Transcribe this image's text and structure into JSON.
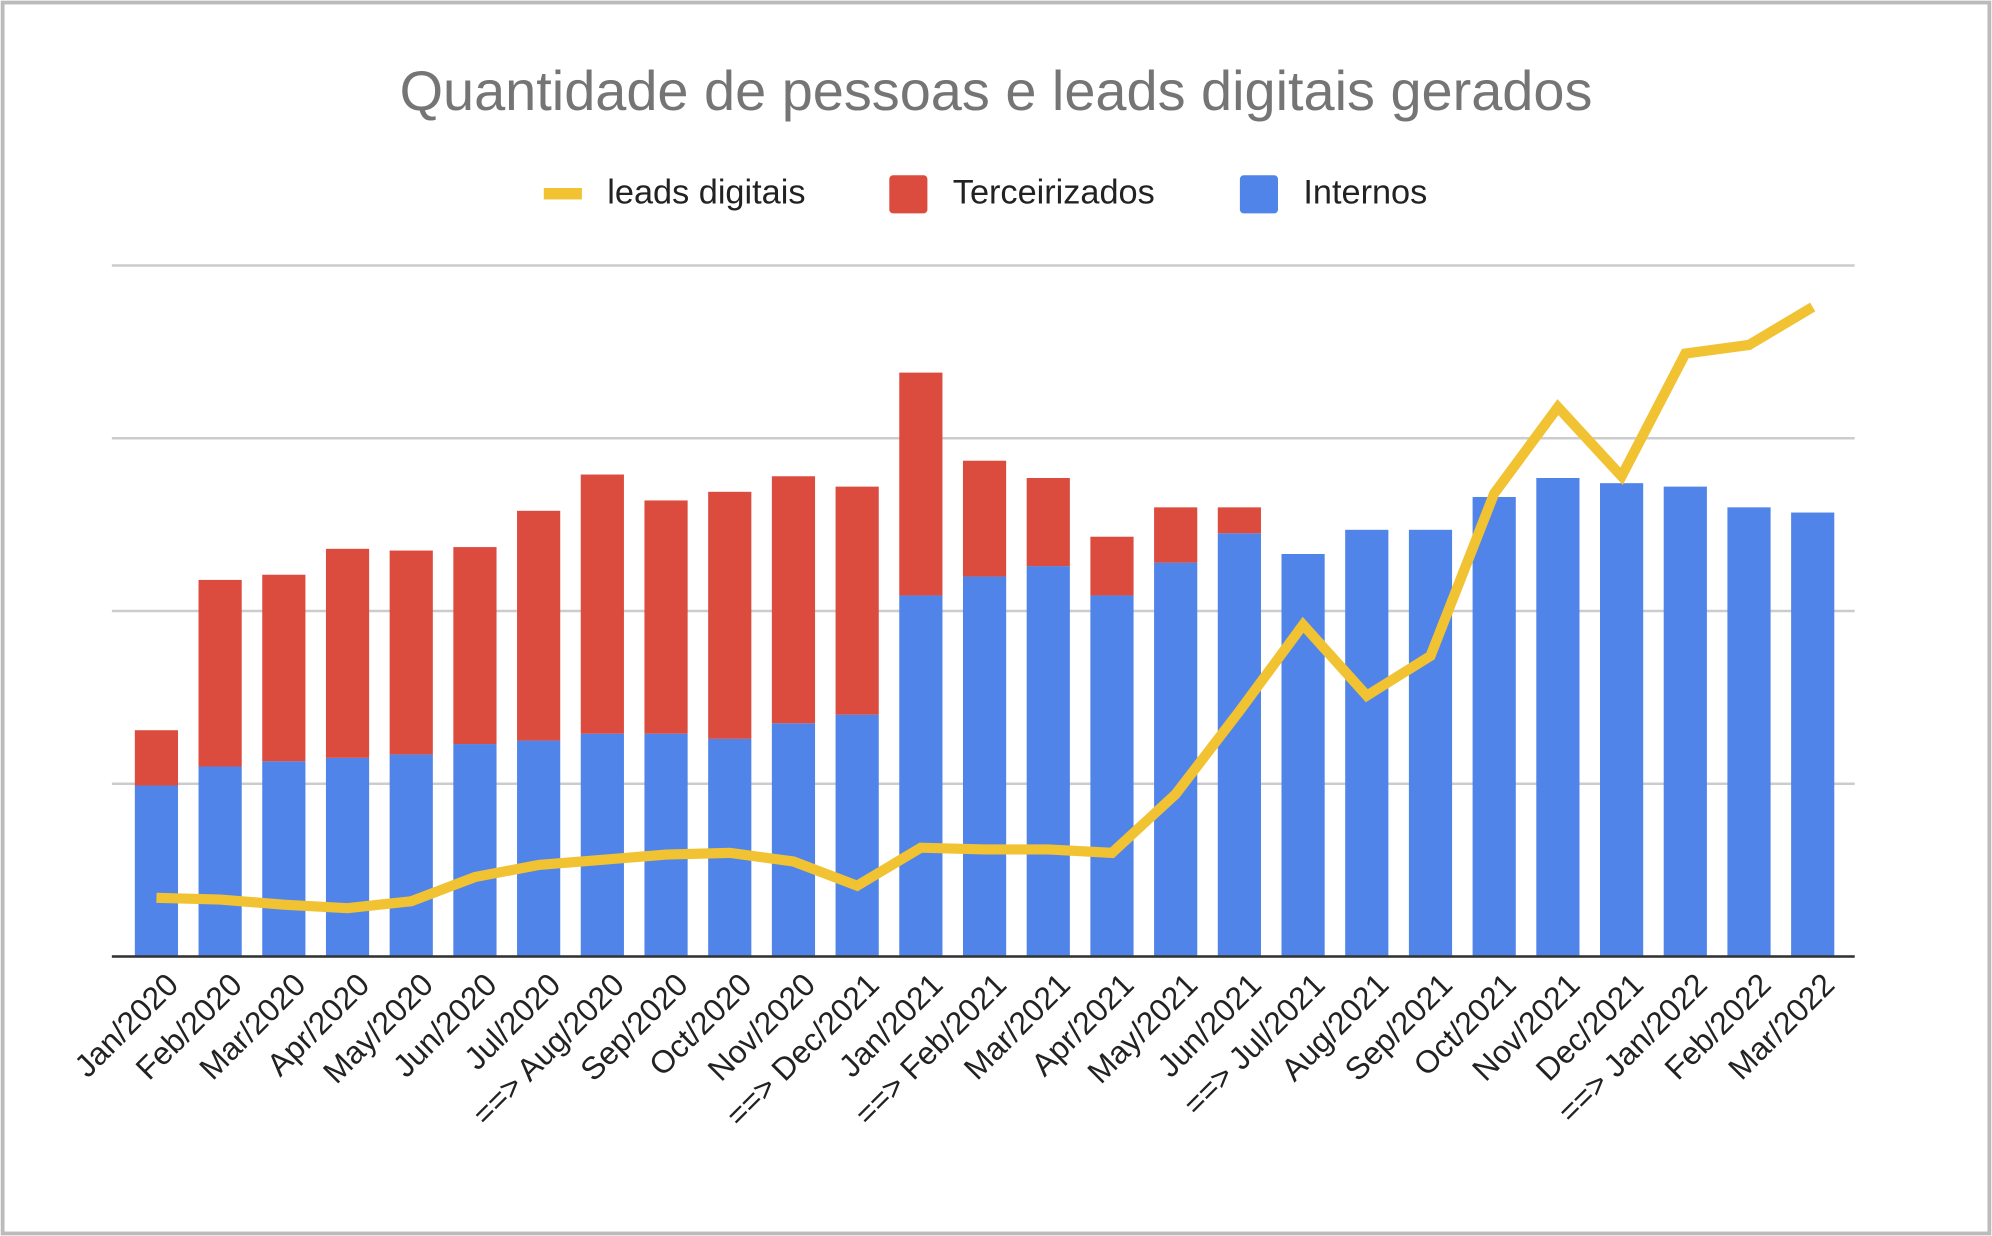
{
  "chart_data": {
    "type": "bar",
    "title": "Quantidade de pessoas e leads digitais gerados",
    "categories": [
      "Jan/2020",
      "Feb/2020",
      "Mar/2020",
      "Apr/2020",
      "May/2020",
      "Jun/2020",
      "Jul/2020",
      "==> Aug/2020",
      "Sep/2020",
      "Oct/2020",
      "Nov/2020",
      "==> Dec/2021",
      "Jan/2021",
      "==> Feb/2021",
      "Mar/2021",
      "Apr/2021",
      "May/2021",
      "Jun/2021",
      "==> Jul/2021",
      "Aug/2021",
      "Sep/2021",
      "Oct/2021",
      "Nov/2021",
      "Dec/2021",
      "==> Jan/2022",
      "Feb/2022",
      "Mar/2022"
    ],
    "stacked": true,
    "series": [
      {
        "name": "leads digitais",
        "type": "line",
        "color": "#f1c232",
        "values": [
          0.34,
          0.33,
          0.3,
          0.28,
          0.32,
          0.46,
          0.53,
          0.56,
          0.59,
          0.6,
          0.55,
          0.41,
          0.63,
          0.62,
          0.62,
          0.6,
          0.94,
          1.42,
          1.92,
          1.51,
          1.74,
          2.68,
          3.18,
          2.78,
          3.49,
          3.54,
          3.76
        ]
      },
      {
        "name": "Terceirizados",
        "type": "bar",
        "color": "#db4c3f",
        "values": [
          0.32,
          1.08,
          1.08,
          1.21,
          1.18,
          1.14,
          1.33,
          1.5,
          1.35,
          1.43,
          1.43,
          1.32,
          1.29,
          0.67,
          0.51,
          0.34,
          0.32,
          0.15,
          0,
          0,
          0,
          0,
          0,
          0,
          0,
          0,
          0
        ]
      },
      {
        "name": "Internos",
        "type": "bar",
        "color": "#5084e8",
        "values": [
          0.99,
          1.1,
          1.13,
          1.15,
          1.17,
          1.23,
          1.25,
          1.29,
          1.29,
          1.26,
          1.35,
          1.4,
          2.09,
          2.2,
          2.26,
          2.09,
          2.28,
          2.45,
          2.33,
          2.47,
          2.47,
          2.66,
          2.77,
          2.74,
          2.72,
          2.6,
          2.57
        ]
      }
    ],
    "ylim": [
      0,
      4
    ],
    "grid_lines": [
      0,
      1,
      2,
      3,
      4
    ],
    "grid": true,
    "legend": "top"
  }
}
